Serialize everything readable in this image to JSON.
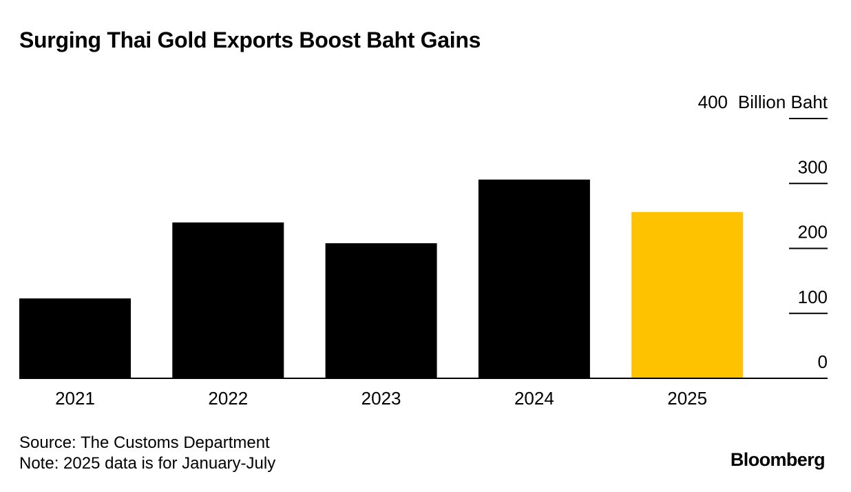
{
  "title": "Surging Thai Gold Exports Boost Baht Gains",
  "colors": {
    "bar": "#000000",
    "highlight": "#FEC200",
    "gridline": "#000000",
    "text": "#000000",
    "background": "#FFFFFF"
  },
  "chart_data": {
    "type": "bar",
    "title": "Surging Thai Gold Exports Boost Baht Gains",
    "categories": [
      "2021",
      "2022",
      "2023",
      "2024",
      "2025"
    ],
    "values": [
      123,
      240,
      208,
      306,
      256
    ],
    "highlight_category": "2025",
    "xlabel": "",
    "ylabel": "Billion Baht",
    "ylim": [
      0,
      400
    ],
    "yticks": [
      0,
      100,
      200,
      300,
      400
    ],
    "ytick_labels": [
      "0",
      "100",
      "200",
      "300",
      "400"
    ],
    "y_axis_side": "right",
    "grid": false,
    "legend": "none"
  },
  "footer": {
    "source": "Source: The Customs Department",
    "note": "Note: 2025 data is for January-July"
  },
  "brand": "Bloomberg"
}
